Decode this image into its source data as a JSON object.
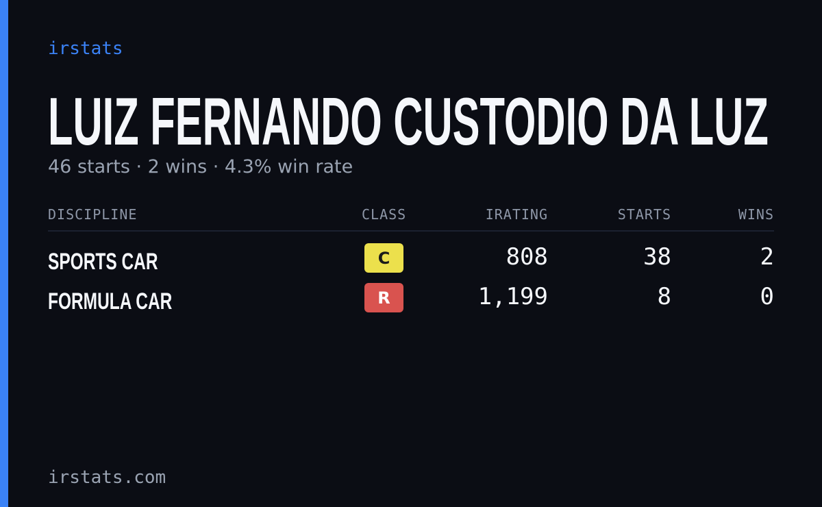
{
  "header": {
    "brand": "irstats",
    "name": "LUIZ FERNANDO CUSTODIO DA LUZ",
    "summary": "46 starts · 2 wins · 4.3% win rate"
  },
  "table": {
    "columns": [
      "DISCIPLINE",
      "CLASS",
      "IRATING",
      "STARTS",
      "WINS"
    ],
    "rows": [
      {
        "discipline": "SPORTS CAR",
        "class": "C",
        "class_color": "#ece04c",
        "class_text_color": "#1a1a1a",
        "irating": "808",
        "starts": "38",
        "wins": "2"
      },
      {
        "discipline": "FORMULA CAR",
        "class": "R",
        "class_color": "#d9534f",
        "class_text_color": "#ffffff",
        "irating": "1,199",
        "starts": "8",
        "wins": "0"
      }
    ]
  },
  "footer": {
    "site": "irstats.com"
  }
}
